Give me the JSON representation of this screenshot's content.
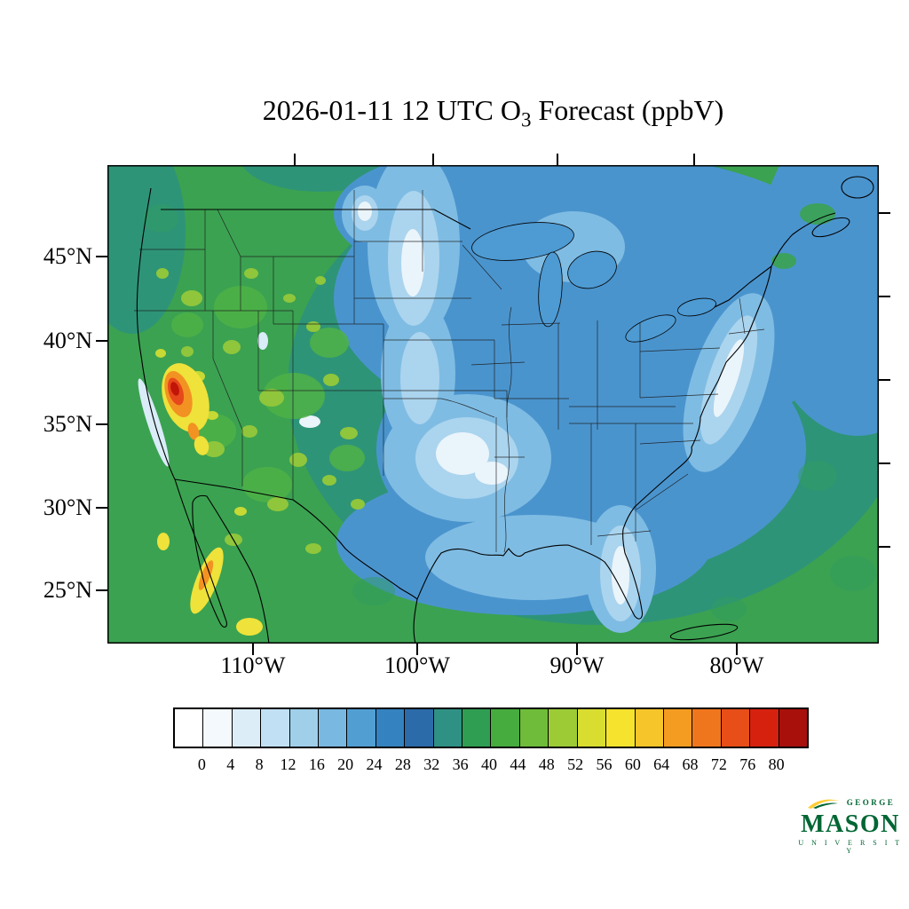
{
  "title": {
    "pre": "2026-01-11 12 UTC O",
    "sub": "3",
    "post": " Forecast (ppbV)"
  },
  "axes": {
    "lat_labels": [
      "45°N",
      "40°N",
      "35°N",
      "30°N",
      "25°N"
    ],
    "lon_labels": [
      "110°W",
      "100°W",
      "90°W",
      "80°W"
    ]
  },
  "colorbar": {
    "tick_labels": [
      "0",
      "4",
      "8",
      "12",
      "16",
      "20",
      "24",
      "28",
      "32",
      "36",
      "40",
      "44",
      "48",
      "52",
      "56",
      "60",
      "64",
      "68",
      "72",
      "76",
      "80"
    ],
    "colors": [
      "#FFFFFF",
      "#F3F9FD",
      "#DCEDF8",
      "#C1E0F3",
      "#A0CFEA",
      "#79B8E0",
      "#519ED2",
      "#3482BF",
      "#2C6BAA",
      "#2E9184",
      "#2F9E52",
      "#46AC3E",
      "#6FBC3A",
      "#9CCB36",
      "#D8DD30",
      "#F5E32E",
      "#F6C52A",
      "#F49C22",
      "#F0761D",
      "#E84E18",
      "#D6210F",
      "#A8100C"
    ]
  },
  "logo": {
    "line1": "GEORGE",
    "line2": "MASON",
    "line3": "U N I V E R S I T Y",
    "green": "#006633",
    "gold": "#FFCC33"
  },
  "chart_data": {
    "type": "heatmap",
    "title": "2026-01-11 12 UTC O3 Forecast (ppbV)",
    "variable": "Surface ozone (O3) forecast",
    "units": "ppbV",
    "valid_time": "2026-01-11 12 UTC",
    "region": "Contiguous United States with parts of Canada and Mexico",
    "y_tick_labels": [
      "45°N",
      "40°N",
      "35°N",
      "30°N",
      "25°N"
    ],
    "x_tick_labels": [
      "110°W",
      "100°W",
      "90°W",
      "80°W"
    ],
    "colorbar_levels": [
      0,
      4,
      8,
      12,
      16,
      20,
      24,
      28,
      32,
      36,
      40,
      44,
      48,
      52,
      56,
      60,
      64,
      68,
      72,
      76,
      80
    ],
    "colorbar_colors": [
      "#FFFFFF",
      "#F3F9FD",
      "#DCEDF8",
      "#C1E0F3",
      "#A0CFEA",
      "#79B8E0",
      "#519ED2",
      "#3482BF",
      "#2C6BAA",
      "#2E9184",
      "#2F9E52",
      "#46AC3E",
      "#6FBC3A",
      "#9CCB36",
      "#D8DD30",
      "#F5E32E",
      "#F6C52A",
      "#F49C22",
      "#F0761D",
      "#E84E18",
      "#D6210F",
      "#A8100C"
    ],
    "notable_features": [
      {
        "area": "Eastern California / western Nevada",
        "approx_value_ppbv": "56-80",
        "description": "isolated maximum with orange and red core"
      },
      {
        "area": "Western US (Great Basin, Rockies, Southwest)",
        "approx_value_ppbv": "32-44",
        "description": "broad green field with yellow-green mottled patches"
      },
      {
        "area": "Central Plains band (Dakotas through Oklahoma / north Texas)",
        "approx_value_ppbv": "0-12",
        "description": "minimum band of white and pale blue"
      },
      {
        "area": "Midwest, Great Lakes, Gulf coast and eastern US",
        "approx_value_ppbv": "16-28",
        "description": "broad blue region"
      },
      {
        "area": "Mid-Atlantic coastal strip and central Florida",
        "approx_value_ppbv": "0-12",
        "description": "narrow light/white pockets"
      },
      {
        "area": "Baja California coast (Mexico)",
        "approx_value_ppbv": "44-56",
        "description": "yellow-orange strip"
      }
    ]
  }
}
